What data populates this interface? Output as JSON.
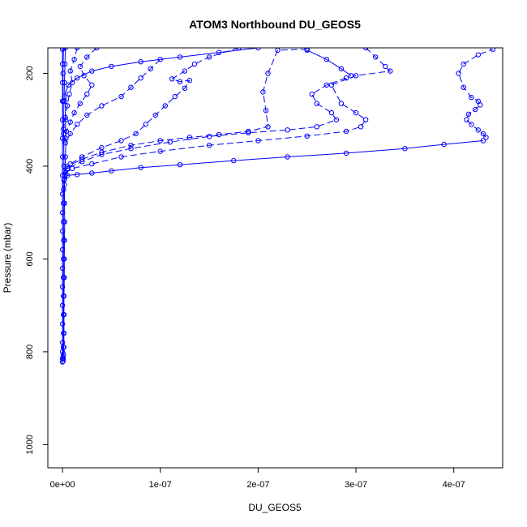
{
  "chart_data": {
    "type": "scatter",
    "title": "ATOM3 Northbound DU_GEOS5",
    "xlabel": "DU_GEOS5",
    "ylabel": "Pressure (mbar)",
    "xlim": [
      -1.5e-08,
      4.5e-07
    ],
    "ylim": [
      1050,
      145
    ],
    "y_reversed": true,
    "x_ticks": [
      0,
      1e-07,
      2e-07,
      3e-07,
      4e-07
    ],
    "x_tick_labels": [
      "0e+00",
      "1e-07",
      "2e-07",
      "3e-07",
      "4e-07"
    ],
    "y_ticks": [
      200,
      400,
      600,
      800,
      1000
    ],
    "y_tick_labels": [
      "200",
      "400",
      "600",
      "800",
      "1000"
    ],
    "grid": false,
    "legend": "none",
    "marker": "open-circle",
    "color": "#0000ff",
    "series": [
      {
        "line_style": "dashed",
        "points": [
          [
            4.33e-07,
            338
          ],
          [
            4.3e-07,
            330
          ],
          [
            4.25e-07,
            322
          ],
          [
            4.18e-07,
            310
          ],
          [
            4.13e-07,
            300
          ],
          [
            4.15e-07,
            288
          ],
          [
            4.22e-07,
            278
          ],
          [
            4.27e-07,
            268
          ],
          [
            4.25e-07,
            260
          ],
          [
            4.18e-07,
            252
          ],
          [
            4.1e-07,
            230
          ],
          [
            4.05e-07,
            200
          ],
          [
            4.1e-07,
            180
          ],
          [
            4.25e-07,
            160
          ],
          [
            4.4e-07,
            148
          ]
        ]
      },
      {
        "line_style": "solid",
        "points": [
          [
            4.3e-07,
            345
          ],
          [
            3.9e-07,
            353
          ],
          [
            3.5e-07,
            362
          ],
          [
            2.9e-07,
            372
          ],
          [
            2.3e-07,
            380
          ],
          [
            1.75e-07,
            388
          ],
          [
            1.2e-07,
            397
          ],
          [
            8e-08,
            403
          ],
          [
            5e-08,
            410
          ],
          [
            3e-08,
            415
          ],
          [
            1.5e-08,
            418
          ],
          [
            5e-09,
            420
          ],
          [
            2e-09,
            428
          ]
        ]
      },
      {
        "line_style": "dashed",
        "points": [
          [
            3.1e-07,
            145
          ],
          [
            3.2e-07,
            165
          ],
          [
            3.3e-07,
            185
          ],
          [
            3.35e-07,
            195
          ],
          [
            3e-07,
            205
          ],
          [
            2.75e-07,
            225
          ],
          [
            2.85e-07,
            265
          ],
          [
            3e-07,
            285
          ],
          [
            3.1e-07,
            300
          ],
          [
            3.05e-07,
            315
          ],
          [
            2.9e-07,
            325
          ],
          [
            2.5e-07,
            335
          ],
          [
            2e-07,
            345
          ],
          [
            1.5e-07,
            355
          ],
          [
            1e-07,
            368
          ],
          [
            6e-08,
            380
          ],
          [
            3e-08,
            395
          ],
          [
            1e-08,
            405
          ],
          [
            3e-09,
            415
          ]
        ]
      },
      {
        "line_style": "dashed",
        "points": [
          [
            2.9e-07,
            210
          ],
          [
            2.7e-07,
            225
          ],
          [
            2.55e-07,
            245
          ],
          [
            2.6e-07,
            265
          ],
          [
            2.75e-07,
            285
          ],
          [
            2.8e-07,
            300
          ],
          [
            2.6e-07,
            315
          ],
          [
            2.3e-07,
            322
          ],
          [
            1.9e-07,
            328
          ],
          [
            1.5e-07,
            336
          ],
          [
            1.1e-07,
            348
          ],
          [
            7e-08,
            362
          ],
          [
            4e-08,
            375
          ],
          [
            2e-08,
            390
          ],
          [
            5e-09,
            405
          ]
        ]
      },
      {
        "line_style": "dashed",
        "points": [
          [
            2.5e-07,
            148
          ],
          [
            2.2e-07,
            150
          ],
          [
            2.1e-07,
            200
          ],
          [
            2.05e-07,
            240
          ],
          [
            2.08e-07,
            280
          ],
          [
            2.1e-07,
            315
          ],
          [
            1.9e-07,
            325
          ],
          [
            1.6e-07,
            332
          ],
          [
            1.3e-07,
            338
          ],
          [
            1e-07,
            345
          ],
          [
            7e-08,
            355
          ],
          [
            4e-08,
            370
          ],
          [
            2e-08,
            385
          ],
          [
            5e-09,
            400
          ]
        ]
      },
      {
        "line_style": "solid",
        "points": [
          [
            2e-07,
            145
          ],
          [
            1.6e-07,
            155
          ],
          [
            1.2e-07,
            165
          ],
          [
            8e-08,
            175
          ],
          [
            5e-08,
            185
          ],
          [
            3e-08,
            195
          ],
          [
            1.5e-08,
            210
          ],
          [
            6e-09,
            225
          ],
          [
            2e-09,
            250
          ]
        ]
      },
      {
        "line_style": "solid",
        "points": [
          [
            2.5e-07,
            150
          ],
          [
            2.7e-07,
            170
          ],
          [
            2.85e-07,
            190
          ],
          [
            2.95e-07,
            205
          ]
        ]
      },
      {
        "line_style": "dashed",
        "points": [
          [
            1.8e-07,
            145
          ],
          [
            1.5e-07,
            165
          ],
          [
            1.35e-07,
            180
          ],
          [
            1.25e-07,
            195
          ],
          [
            1.12e-07,
            212
          ],
          [
            1.2e-07,
            218
          ],
          [
            1.3e-07,
            215
          ],
          [
            1.25e-07,
            232
          ],
          [
            1.15e-07,
            250
          ],
          [
            1.05e-07,
            270
          ],
          [
            9.5e-08,
            290
          ],
          [
            8.5e-08,
            310
          ],
          [
            7.5e-08,
            330
          ],
          [
            6e-08,
            345
          ],
          [
            4e-08,
            360
          ],
          [
            2e-08,
            380
          ],
          [
            8e-09,
            395
          ],
          [
            2e-09,
            410
          ]
        ]
      },
      {
        "line_style": "dashed",
        "points": [
          [
            1e-07,
            170
          ],
          [
            9e-08,
            190
          ],
          [
            8e-08,
            210
          ],
          [
            7e-08,
            230
          ],
          [
            6e-08,
            250
          ],
          [
            4e-08,
            270
          ],
          [
            2.5e-08,
            290
          ],
          [
            1.5e-08,
            310
          ],
          [
            8e-09,
            330
          ],
          [
            3e-09,
            350
          ]
        ]
      },
      {
        "line_style": "dashed",
        "points": [
          [
            3.5e-08,
            145
          ],
          [
            2.5e-08,
            165
          ],
          [
            1.8e-08,
            185
          ],
          [
            2.2e-08,
            205
          ],
          [
            3e-08,
            225
          ],
          [
            2.5e-08,
            245
          ],
          [
            1.8e-08,
            265
          ],
          [
            1.2e-08,
            285
          ],
          [
            8e-09,
            305
          ],
          [
            4e-09,
            325
          ],
          [
            2e-09,
            345
          ]
        ]
      },
      {
        "line_style": "dashed",
        "points": [
          [
            1.5e-08,
            145
          ],
          [
            1.2e-08,
            170
          ],
          [
            8e-09,
            195
          ],
          [
            1e-08,
            220
          ],
          [
            7e-09,
            245
          ],
          [
            5e-09,
            270
          ],
          [
            3e-09,
            295
          ],
          [
            1e-09,
            320
          ]
        ]
      },
      {
        "line_style": "solid",
        "points": [
          [
            1e-09,
            145
          ],
          [
            5e-10,
            200
          ],
          [
            8e-10,
            260
          ],
          [
            1.2e-09,
            330
          ],
          [
            1.5e-09,
            400
          ],
          [
            1.5e-09,
            430
          ],
          [
            1.2e-09,
            450
          ],
          [
            1e-09,
            480
          ],
          [
            1e-09,
            520
          ],
          [
            1.2e-09,
            560
          ],
          [
            1e-09,
            600
          ],
          [
            9e-10,
            640
          ],
          [
            1e-09,
            680
          ],
          [
            9e-10,
            720
          ],
          [
            1e-09,
            760
          ],
          [
            8e-10,
            790
          ],
          [
            7e-10,
            810
          ],
          [
            6e-10,
            820
          ]
        ]
      },
      {
        "line_style": "solid",
        "points": [
          [
            3e-09,
            145
          ],
          [
            2.5e-09,
            180
          ],
          [
            2e-09,
            220
          ],
          [
            2.5e-09,
            260
          ],
          [
            3e-09,
            300
          ],
          [
            3.5e-09,
            340
          ],
          [
            3e-09,
            380
          ],
          [
            2.5e-09,
            420
          ],
          [
            2e-09,
            440
          ],
          [
            2e-09,
            480
          ],
          [
            2.2e-09,
            520
          ],
          [
            2e-09,
            560
          ],
          [
            1.8e-09,
            600
          ],
          [
            1.8e-09,
            640
          ],
          [
            1.5e-09,
            680
          ],
          [
            1.5e-09,
            720
          ],
          [
            1.5e-09,
            760
          ],
          [
            1.3e-09,
            790
          ],
          [
            1e-09,
            805
          ],
          [
            8e-10,
            815
          ]
        ]
      },
      {
        "line_style": "solid",
        "points": [
          [
            0,
            148
          ],
          [
            0,
            180
          ],
          [
            0,
            220
          ],
          [
            0,
            260
          ],
          [
            0,
            300
          ],
          [
            0,
            340
          ],
          [
            0,
            380
          ],
          [
            0,
            420
          ],
          [
            0,
            460
          ],
          [
            0,
            500
          ],
          [
            0,
            540
          ],
          [
            0,
            580
          ],
          [
            0,
            620
          ],
          [
            0,
            660
          ],
          [
            0,
            700
          ],
          [
            0,
            740
          ],
          [
            0,
            780
          ],
          [
            0,
            800
          ],
          [
            0,
            815
          ],
          [
            0,
            822
          ]
        ]
      }
    ]
  }
}
